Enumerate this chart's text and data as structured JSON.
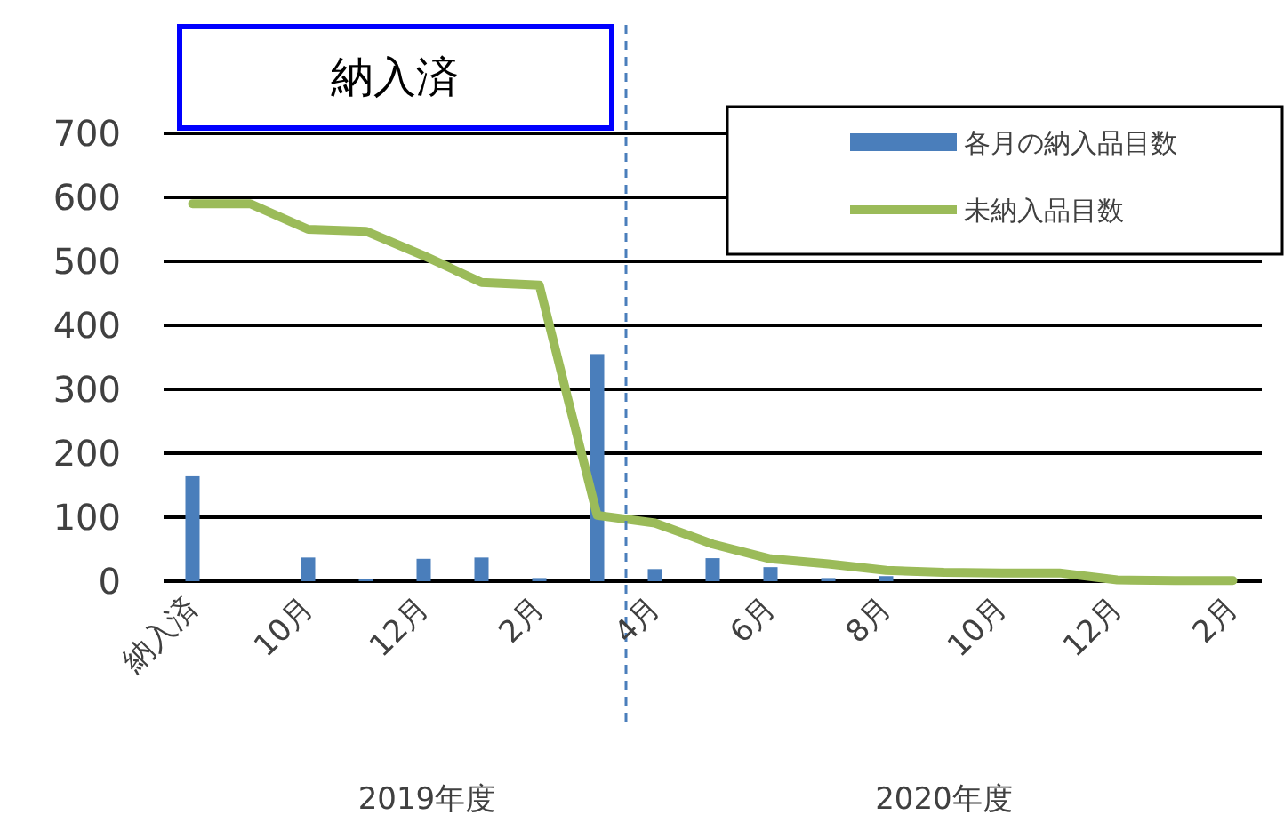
{
  "chart_data": {
    "type": "bar",
    "categories": [
      "納入済",
      null,
      "10月",
      null,
      "12月",
      null,
      "2月",
      null,
      "4月",
      null,
      "6月",
      null,
      "8月",
      null,
      "10月",
      null,
      "12月",
      null,
      "2月"
    ],
    "series": [
      {
        "name": "各月の納入品目数",
        "color": "#4a7ebb",
        "values": [
          164,
          0,
          37,
          3,
          35,
          37,
          5,
          355,
          19,
          36,
          22,
          5,
          8,
          null,
          null,
          0,
          0,
          0,
          0
        ]
      },
      {
        "name": "未納入品目数",
        "type": "line",
        "color": "#9bbb59",
        "values": [
          590,
          590,
          550,
          547,
          509,
          467,
          463,
          103,
          91,
          58,
          35,
          27,
          17,
          14,
          13,
          13,
          2,
          1,
          1
        ]
      }
    ],
    "ylim": [
      0,
      700
    ],
    "yticks": [
      0,
      100,
      200,
      300,
      400,
      500,
      600,
      700
    ],
    "grid": "y",
    "legend": "top right",
    "marker": "none",
    "line_style": "solid",
    "ref_lines": [
      {
        "axis": "x",
        "value": "4月",
        "color": "#4a7ebb",
        "line_style": "dashed"
      }
    ],
    "annotations": [
      "納入済",
      "2019年度",
      "2020年度"
    ]
  }
}
